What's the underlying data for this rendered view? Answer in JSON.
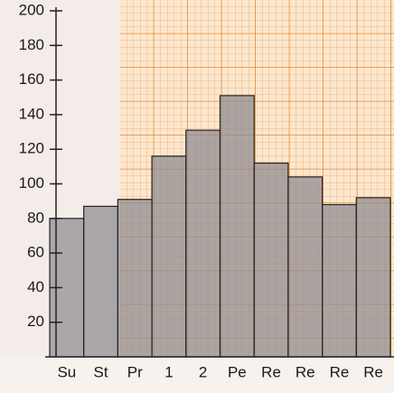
{
  "chart_data": {
    "type": "bar",
    "categories": [
      "Su",
      "St",
      "Pr",
      "1",
      "2",
      "Pe",
      "Re",
      "Re",
      "Re",
      "Re"
    ],
    "values": [
      80,
      87,
      91,
      116,
      131,
      151,
      112,
      104,
      88,
      92
    ],
    "color": "#8e8b90",
    "ylim": [
      0,
      200
    ],
    "yticks": [
      20,
      40,
      60,
      80,
      100,
      120,
      140,
      160,
      180,
      200
    ]
  }
}
